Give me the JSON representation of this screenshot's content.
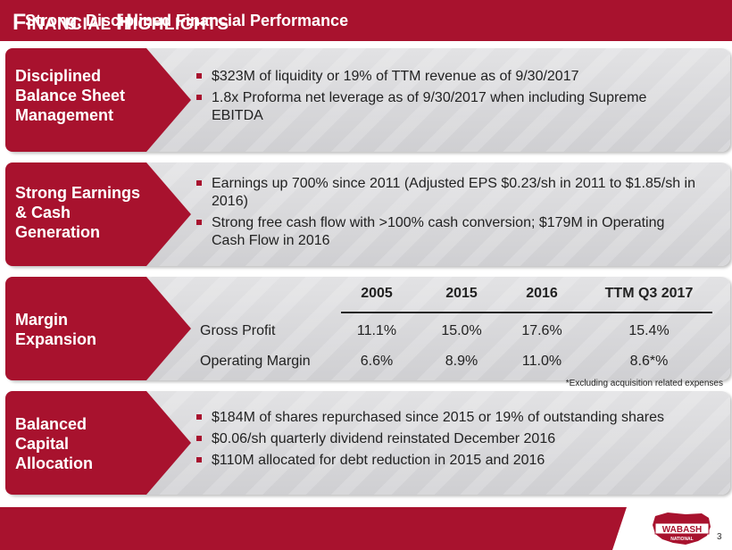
{
  "header": {
    "title_cap1": "F",
    "title_rest1": "INANCIAL ",
    "title_cap2": "H",
    "title_rest2": "IGHLIGHTS"
  },
  "sections": [
    {
      "label": [
        "Disciplined",
        "Balance Sheet",
        "Management"
      ],
      "bullets": [
        "$323M of liquidity or 19% of TTM revenue as of 9/30/2017",
        "1.8x Proforma net leverage as of 9/30/2017 when including Supreme EBITDA"
      ]
    },
    {
      "label": [
        "Strong Earnings",
        "& Cash",
        "Generation"
      ],
      "bullets": [
        "Earnings up 700% since 2011 (Adjusted EPS $0.23/sh in 2011 to $1.85/sh in 2016)",
        "Strong free cash flow with >100% cash conversion; $179M in Operating Cash Flow in 2016"
      ]
    },
    {
      "label": [
        "Margin",
        "Expansion"
      ],
      "table": {
        "columns": [
          "2005",
          "2015",
          "2016",
          "TTM Q3 2017"
        ],
        "rows": [
          {
            "label": "Gross Profit",
            "values": [
              "11.1%",
              "15.0%",
              "17.6%",
              "15.4%"
            ]
          },
          {
            "label": "Operating Margin",
            "values": [
              "6.6%",
              "8.9%",
              "11.0%",
              "8.6*%"
            ]
          }
        ],
        "footnote": "*Excluding acquisition related expenses"
      }
    },
    {
      "label": [
        "Balanced",
        "Capital",
        "Allocation"
      ],
      "bullets": [
        "$184M of shares repurchased since 2015 or 19% of outstanding shares",
        "$0.06/sh quarterly dividend reinstated December 2016",
        "$110M allocated for debt reduction in 2015 and 2016"
      ]
    }
  ],
  "footer": {
    "text": "Strong, Disciplined Financial Performance",
    "page_number": "3",
    "logo_text": "WABASH",
    "logo_subtext": "NATIONAL"
  },
  "colors": {
    "brand_red": "#a8122e",
    "panel_grey": "#d6d6d8"
  }
}
